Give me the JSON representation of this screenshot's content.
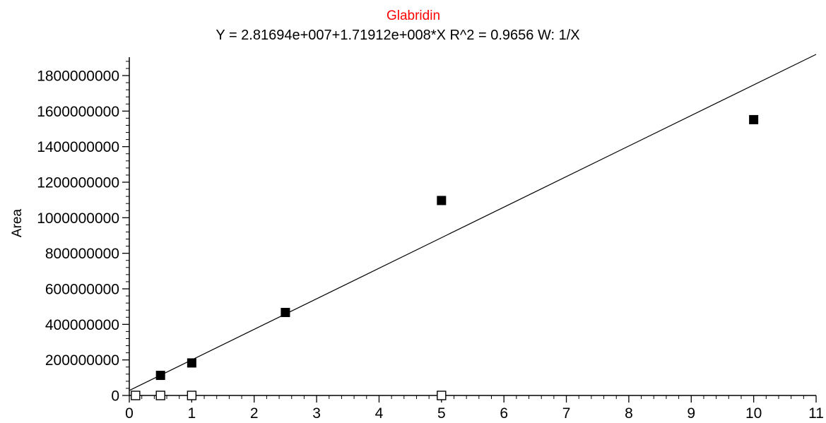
{
  "chart_data": {
    "type": "scatter",
    "title": "Glabridin",
    "subtitle": "Y = 2.81694e+007+1.71912e+008*X   R^2 = 0.9656   W: 1/X",
    "xlabel": "",
    "ylabel": "Area",
    "xlim": [
      0,
      11
    ],
    "ylim": [
      0,
      1900000000
    ],
    "x_ticks": [
      0,
      1,
      2,
      3,
      4,
      5,
      6,
      7,
      8,
      9,
      10,
      11
    ],
    "x_tick_labels": [
      "0",
      "1",
      "2",
      "3",
      "4",
      "5",
      "6",
      "7",
      "8",
      "9",
      "10",
      "11"
    ],
    "y_ticks": [
      0,
      200000000,
      400000000,
      600000000,
      800000000,
      1000000000,
      1200000000,
      1400000000,
      1600000000,
      1800000000
    ],
    "y_tick_labels": [
      "0",
      "200000000",
      "400000000",
      "600000000",
      "800000000",
      "1000000000",
      "1200000000",
      "1400000000",
      "1600000000",
      "1800000000"
    ],
    "grid": false,
    "series": [
      {
        "marker": "filled-square",
        "points": [
          {
            "x": 0.5,
            "y": 113000000
          },
          {
            "x": 1,
            "y": 183000000
          },
          {
            "x": 2.5,
            "y": 467000000
          },
          {
            "x": 5,
            "y": 1097000000
          },
          {
            "x": 10,
            "y": 1552000000
          }
        ]
      },
      {
        "marker": "open-square",
        "points": [
          {
            "x": 0.1,
            "y": 0
          },
          {
            "x": 0.5,
            "y": 0
          },
          {
            "x": 1,
            "y": 0
          },
          {
            "x": 5,
            "y": 0
          }
        ]
      }
    ],
    "fit_line": {
      "intercept": 28169400,
      "slope": 171912000
    },
    "colors": {
      "title": "#ff0000",
      "text": "#000000",
      "axis": "#000000",
      "fit_line": "#000000",
      "marker": "#000000"
    }
  }
}
